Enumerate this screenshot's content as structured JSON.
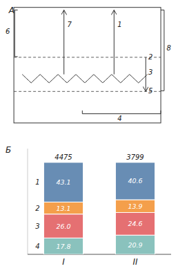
{
  "chart_data": [
    {
      "type": "diagram",
      "title": "А",
      "annotations": [
        "1",
        "2",
        "3",
        "4",
        "5",
        "6",
        "7",
        "8"
      ]
    },
    {
      "type": "bar",
      "title": "Б",
      "stacked": true,
      "data_labels": true,
      "tick_labels": "x",
      "categories": [
        "I",
        "II"
      ],
      "ylim": [
        0,
        115
      ],
      "series": [
        {
          "name": "1",
          "values": [
            43.1,
            40.6
          ]
        },
        {
          "name": "2",
          "values": [
            13.1,
            13.9
          ]
        },
        {
          "name": "3",
          "values": [
            26.0,
            24.6
          ],
          "value_labels": [
            "26.0",
            "24.6"
          ]
        },
        {
          "name": "4",
          "values": [
            17.8,
            20.9
          ]
        }
      ],
      "totals": [
        4475,
        3799
      ]
    }
  ]
}
